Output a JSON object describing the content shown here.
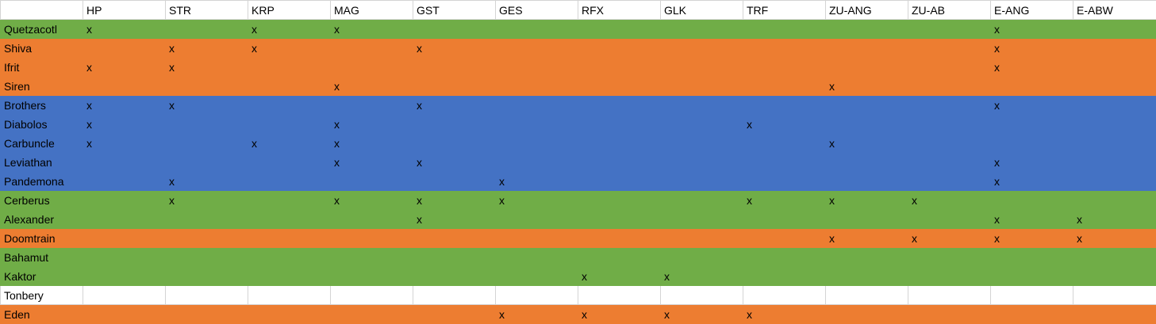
{
  "sheet": {
    "columns": [
      "",
      "HP",
      "STR",
      "KRP",
      "MAG",
      "GST",
      "GES",
      "RFX",
      "GLK",
      "TRF",
      "ZU-ANG",
      "ZU-AB",
      "E-ANG",
      "E-ABW"
    ],
    "colors": {
      "green": "#70ad47",
      "orange": "#ed7d31",
      "blue": "#4472c4",
      "white": "#ffffff"
    },
    "rows": [
      {
        "name": "Quetzacotl",
        "color": "green",
        "cells": [
          "x",
          "",
          "x",
          "x",
          "",
          "",
          "",
          "",
          "",
          "",
          "",
          "x",
          ""
        ]
      },
      {
        "name": "Shiva",
        "color": "orange",
        "cells": [
          "",
          "x",
          "x",
          "",
          "x",
          "",
          "",
          "",
          "",
          "",
          "",
          "x",
          ""
        ]
      },
      {
        "name": "Ifrit",
        "color": "orange",
        "cells": [
          "x",
          "x",
          "",
          "",
          "",
          "",
          "",
          "",
          "",
          "",
          "",
          "x",
          ""
        ]
      },
      {
        "name": "Siren",
        "color": "orange",
        "cells": [
          "",
          "",
          "",
          "x",
          "",
          "",
          "",
          "",
          "",
          "x",
          "",
          "",
          ""
        ]
      },
      {
        "name": "Brothers",
        "color": "blue",
        "cells": [
          "x",
          "x",
          "",
          "",
          "x",
          "",
          "",
          "",
          "",
          "",
          "",
          "x",
          ""
        ]
      },
      {
        "name": "Diabolos",
        "color": "blue",
        "cells": [
          "x",
          "",
          "",
          "x",
          "",
          "",
          "",
          "",
          "x",
          "",
          "",
          "",
          ""
        ]
      },
      {
        "name": "Carbuncle",
        "color": "blue",
        "cells": [
          "x",
          "",
          "x",
          "x",
          "",
          "",
          "",
          "",
          "",
          "x",
          "",
          "",
          ""
        ]
      },
      {
        "name": "Leviathan",
        "color": "blue",
        "cells": [
          "",
          "",
          "",
          "x",
          "x",
          "",
          "",
          "",
          "",
          "",
          "",
          "x",
          ""
        ]
      },
      {
        "name": "Pandemona",
        "color": "blue",
        "cells": [
          "",
          "x",
          "",
          "",
          "",
          "x",
          "",
          "",
          "",
          "",
          "",
          "x",
          ""
        ]
      },
      {
        "name": "Cerberus",
        "color": "green",
        "cells": [
          "",
          "x",
          "",
          "x",
          "x",
          "x",
          "",
          "",
          "x",
          "x",
          "x",
          "",
          ""
        ]
      },
      {
        "name": "Alexander",
        "color": "green",
        "cells": [
          "",
          "",
          "",
          "",
          "x",
          "",
          "",
          "",
          "",
          "",
          "",
          "x",
          "x"
        ]
      },
      {
        "name": "Doomtrain",
        "color": "orange",
        "cells": [
          "",
          "",
          "",
          "",
          "",
          "",
          "",
          "",
          "",
          "x",
          "x",
          "x",
          "x"
        ]
      },
      {
        "name": "Bahamut",
        "color": "green",
        "cells": [
          "",
          "",
          "",
          "",
          "",
          "",
          "",
          "",
          "",
          "",
          "",
          "",
          ""
        ]
      },
      {
        "name": "Kaktor",
        "color": "green",
        "cells": [
          "",
          "",
          "",
          "",
          "",
          "",
          "x",
          "x",
          "",
          "",
          "",
          "",
          ""
        ]
      },
      {
        "name": "Tonbery",
        "color": "white",
        "cells": [
          "",
          "",
          "",
          "",
          "",
          "",
          "",
          "",
          "",
          "",
          "",
          "",
          ""
        ]
      },
      {
        "name": "Eden",
        "color": "orange",
        "cells": [
          "",
          "",
          "",
          "",
          "",
          "x",
          "x",
          "x",
          "x",
          "",
          "",
          "",
          ""
        ]
      }
    ]
  }
}
